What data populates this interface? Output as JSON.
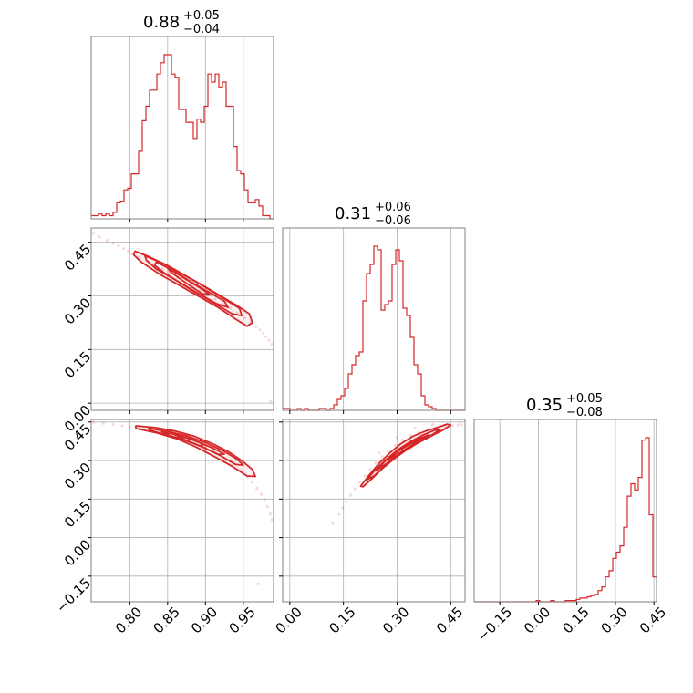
{
  "colors": {
    "series": "#d62728",
    "grid": "#b0b0b0",
    "frame": "#808080"
  },
  "chart_data": {
    "type": "corner",
    "parameters": 3,
    "grid": true,
    "titles": [
      {
        "value": "0.88",
        "plus": "+0.05",
        "minus": "−0.04"
      },
      {
        "value": "0.31",
        "plus": "+0.06",
        "minus": "−0.06"
      },
      {
        "value": "0.35",
        "plus": "+0.05",
        "minus": "−0.08"
      }
    ],
    "ranges": [
      [
        0.749,
        0.99
      ],
      [
        -0.02,
        0.49
      ],
      [
        -0.25,
        0.46
      ]
    ],
    "ticks": [
      {
        "values": [
          0.8,
          0.85,
          0.9,
          0.95
        ],
        "labels": [
          "0.80",
          "0.85",
          "0.90",
          "0.95"
        ]
      },
      {
        "values": [
          0.0,
          0.15,
          0.3,
          0.45
        ],
        "labels": [
          "0.00",
          "0.15",
          "0.30",
          "0.45"
        ]
      },
      {
        "values": [
          -0.15,
          0.0,
          0.15,
          0.3,
          0.45
        ],
        "labels": [
          "−0.15",
          "0.00",
          "0.15",
          "0.30",
          "0.45"
        ]
      }
    ],
    "histograms": [
      {
        "param": 0,
        "bin_start": 0.749,
        "bin_width": 0.00482,
        "counts": [
          2,
          2,
          3,
          2,
          3,
          2,
          4,
          10,
          11,
          18,
          19,
          28,
          28,
          42,
          61,
          70,
          80,
          80,
          90,
          97,
          102,
          102,
          90,
          88,
          68,
          68,
          60,
          60,
          50,
          62,
          60,
          70,
          90,
          85,
          90,
          82,
          85,
          70,
          70,
          45,
          30,
          28,
          18,
          10,
          10,
          12,
          8,
          2,
          2,
          0
        ]
      },
      {
        "param": 1,
        "bin_start": -0.02,
        "bin_width": 0.0102,
        "counts": [
          1,
          1,
          0,
          0,
          1,
          0,
          1,
          0,
          0,
          0,
          1,
          1,
          0,
          1,
          3,
          6,
          8,
          12,
          20,
          25,
          30,
          32,
          60,
          75,
          80,
          90,
          88,
          55,
          58,
          60,
          80,
          88,
          82,
          56,
          52,
          40,
          25,
          20,
          8,
          3,
          2,
          1,
          0,
          0,
          0,
          0,
          0,
          0,
          0,
          0
        ]
      },
      {
        "param": 2,
        "bin_start": -0.25,
        "bin_width": 0.0142,
        "counts": [
          0,
          0,
          0,
          0,
          0,
          0,
          0,
          0,
          0,
          0,
          0,
          0,
          0,
          0,
          0,
          0,
          0,
          1,
          0,
          0,
          0,
          1,
          0,
          0,
          0,
          1,
          1,
          1,
          2,
          3,
          3,
          4,
          5,
          6,
          9,
          12,
          20,
          25,
          35,
          40,
          45,
          60,
          85,
          95,
          90,
          100,
          130,
          132,
          70,
          20
        ]
      }
    ],
    "pairs": [
      {
        "x_param": 0,
        "y_param": 1,
        "samples": [
          [
            0.752,
            0.475
          ],
          [
            0.76,
            0.465
          ],
          [
            0.77,
            0.455
          ],
          [
            0.778,
            0.448
          ],
          [
            0.785,
            0.44
          ],
          [
            0.792,
            0.432
          ],
          [
            0.798,
            0.425
          ],
          [
            0.803,
            0.418
          ],
          [
            0.812,
            0.408
          ],
          [
            0.822,
            0.398
          ],
          [
            0.832,
            0.388
          ],
          [
            0.843,
            0.375
          ],
          [
            0.852,
            0.366
          ],
          [
            0.863,
            0.352
          ],
          [
            0.873,
            0.34
          ],
          [
            0.883,
            0.328
          ],
          [
            0.893,
            0.316
          ],
          [
            0.903,
            0.303
          ],
          [
            0.913,
            0.291
          ],
          [
            0.923,
            0.278
          ],
          [
            0.933,
            0.265
          ],
          [
            0.942,
            0.252
          ],
          [
            0.952,
            0.238
          ],
          [
            0.96,
            0.226
          ],
          [
            0.967,
            0.214
          ],
          [
            0.972,
            0.205
          ],
          [
            0.976,
            0.196
          ],
          [
            0.98,
            0.186
          ],
          [
            0.984,
            0.176
          ],
          [
            0.988,
            0.165
          ],
          [
            0.986,
            0.005
          ]
        ],
        "contours": [
          [
            [
              0.807,
              0.425
            ],
            [
              0.825,
              0.41
            ],
            [
              0.85,
              0.385
            ],
            [
              0.875,
              0.355
            ],
            [
              0.9,
              0.325
            ],
            [
              0.92,
              0.3
            ],
            [
              0.94,
              0.275
            ],
            [
              0.958,
              0.25
            ],
            [
              0.962,
              0.225
            ],
            [
              0.955,
              0.215
            ],
            [
              0.94,
              0.235
            ],
            [
              0.915,
              0.27
            ],
            [
              0.89,
              0.3
            ],
            [
              0.865,
              0.33
            ],
            [
              0.84,
              0.36
            ],
            [
              0.815,
              0.395
            ],
            [
              0.805,
              0.415
            ]
          ],
          [
            [
              0.82,
              0.412
            ],
            [
              0.845,
              0.39
            ],
            [
              0.87,
              0.36
            ],
            [
              0.895,
              0.33
            ],
            [
              0.92,
              0.298
            ],
            [
              0.945,
              0.265
            ],
            [
              0.948,
              0.245
            ],
            [
              0.935,
              0.25
            ],
            [
              0.91,
              0.282
            ],
            [
              0.885,
              0.312
            ],
            [
              0.86,
              0.345
            ],
            [
              0.835,
              0.375
            ],
            [
              0.822,
              0.4
            ]
          ],
          [
            [
              0.835,
              0.395
            ],
            [
              0.858,
              0.37
            ],
            [
              0.88,
              0.34
            ],
            [
              0.905,
              0.31
            ],
            [
              0.925,
              0.285
            ],
            [
              0.93,
              0.268
            ],
            [
              0.915,
              0.278
            ],
            [
              0.892,
              0.305
            ],
            [
              0.868,
              0.335
            ],
            [
              0.845,
              0.365
            ],
            [
              0.833,
              0.385
            ]
          ],
          [
            [
              0.85,
              0.378
            ],
            [
              0.87,
              0.352
            ],
            [
              0.893,
              0.322
            ],
            [
              0.905,
              0.305
            ],
            [
              0.896,
              0.306
            ],
            [
              0.875,
              0.335
            ],
            [
              0.855,
              0.365
            ]
          ]
        ]
      },
      {
        "x_param": 0,
        "y_param": 2,
        "samples": [
          [
            0.752,
            0.45
          ],
          [
            0.765,
            0.445
          ],
          [
            0.778,
            0.44
          ],
          [
            0.79,
            0.436
          ],
          [
            0.8,
            0.432
          ],
          [
            0.812,
            0.428
          ],
          [
            0.825,
            0.424
          ],
          [
            0.838,
            0.418
          ],
          [
            0.85,
            0.41
          ],
          [
            0.862,
            0.4
          ],
          [
            0.875,
            0.388
          ],
          [
            0.888,
            0.372
          ],
          [
            0.9,
            0.355
          ],
          [
            0.912,
            0.335
          ],
          [
            0.924,
            0.312
          ],
          [
            0.936,
            0.288
          ],
          [
            0.946,
            0.262
          ],
          [
            0.956,
            0.236
          ],
          [
            0.962,
            0.215
          ],
          [
            0.968,
            0.192
          ],
          [
            0.974,
            0.168
          ],
          [
            0.978,
            0.148
          ],
          [
            0.982,
            0.12
          ],
          [
            0.986,
            0.092
          ],
          [
            0.988,
            0.07
          ],
          [
            0.97,
            -0.18
          ]
        ],
        "contours": [
          [
            [
              0.808,
              0.435
            ],
            [
              0.835,
              0.428
            ],
            [
              0.86,
              0.415
            ],
            [
              0.885,
              0.395
            ],
            [
              0.91,
              0.365
            ],
            [
              0.93,
              0.335
            ],
            [
              0.948,
              0.3
            ],
            [
              0.962,
              0.265
            ],
            [
              0.966,
              0.238
            ],
            [
              0.955,
              0.24
            ],
            [
              0.935,
              0.278
            ],
            [
              0.912,
              0.315
            ],
            [
              0.888,
              0.352
            ],
            [
              0.862,
              0.385
            ],
            [
              0.835,
              0.408
            ],
            [
              0.808,
              0.425
            ]
          ],
          [
            [
              0.825,
              0.425
            ],
            [
              0.85,
              0.414
            ],
            [
              0.875,
              0.396
            ],
            [
              0.9,
              0.37
            ],
            [
              0.922,
              0.34
            ],
            [
              0.942,
              0.305
            ],
            [
              0.95,
              0.282
            ],
            [
              0.94,
              0.285
            ],
            [
              0.918,
              0.322
            ],
            [
              0.895,
              0.355
            ],
            [
              0.87,
              0.382
            ],
            [
              0.842,
              0.405
            ],
            [
              0.826,
              0.418
            ]
          ],
          [
            [
              0.842,
              0.412
            ],
            [
              0.865,
              0.398
            ],
            [
              0.888,
              0.375
            ],
            [
              0.91,
              0.348
            ],
            [
              0.925,
              0.325
            ],
            [
              0.917,
              0.324
            ],
            [
              0.898,
              0.35
            ],
            [
              0.875,
              0.378
            ],
            [
              0.852,
              0.398
            ]
          ],
          [
            [
              0.86,
              0.4
            ],
            [
              0.88,
              0.385
            ],
            [
              0.898,
              0.362
            ],
            [
              0.892,
              0.358
            ],
            [
              0.875,
              0.378
            ]
          ]
        ]
      },
      {
        "x_param": 1,
        "y_param": 2,
        "samples": [
          [
            0.12,
            0.055
          ],
          [
            0.138,
            0.09
          ],
          [
            0.148,
            0.115
          ],
          [
            0.158,
            0.14
          ],
          [
            0.17,
            0.165
          ],
          [
            0.182,
            0.19
          ],
          [
            0.195,
            0.215
          ],
          [
            0.21,
            0.24
          ],
          [
            0.225,
            0.265
          ],
          [
            0.24,
            0.29
          ],
          [
            0.258,
            0.315
          ],
          [
            0.275,
            0.338
          ],
          [
            0.295,
            0.36
          ],
          [
            0.315,
            0.38
          ],
          [
            0.338,
            0.398
          ],
          [
            0.36,
            0.41
          ],
          [
            0.385,
            0.42
          ],
          [
            0.41,
            0.428
          ],
          [
            0.435,
            0.432
          ],
          [
            0.455,
            0.435
          ],
          [
            0.47,
            0.438
          ],
          [
            0.48,
            0.44
          ],
          [
            0.3,
            0.39
          ],
          [
            0.35,
            0.425
          ],
          [
            0.4,
            0.44
          ],
          [
            0.25,
            0.33
          ]
        ],
        "contours": [
          [
            [
              0.198,
              0.2
            ],
            [
              0.22,
              0.24
            ],
            [
              0.25,
              0.29
            ],
            [
              0.28,
              0.33
            ],
            [
              0.31,
              0.365
            ],
            [
              0.345,
              0.395
            ],
            [
              0.38,
              0.415
            ],
            [
              0.415,
              0.43
            ],
            [
              0.44,
              0.442
            ],
            [
              0.45,
              0.438
            ],
            [
              0.43,
              0.42
            ],
            [
              0.395,
              0.395
            ],
            [
              0.36,
              0.37
            ],
            [
              0.325,
              0.34
            ],
            [
              0.29,
              0.305
            ],
            [
              0.26,
              0.27
            ],
            [
              0.23,
              0.23
            ],
            [
              0.205,
              0.198
            ]
          ],
          [
            [
              0.215,
              0.225
            ],
            [
              0.24,
              0.265
            ],
            [
              0.27,
              0.305
            ],
            [
              0.3,
              0.34
            ],
            [
              0.335,
              0.372
            ],
            [
              0.37,
              0.398
            ],
            [
              0.405,
              0.418
            ],
            [
              0.42,
              0.42
            ],
            [
              0.395,
              0.398
            ],
            [
              0.36,
              0.372
            ],
            [
              0.325,
              0.345
            ],
            [
              0.292,
              0.31
            ],
            [
              0.262,
              0.275
            ],
            [
              0.235,
              0.24
            ]
          ],
          [
            [
              0.24,
              0.26
            ],
            [
              0.265,
              0.295
            ],
            [
              0.295,
              0.33
            ],
            [
              0.33,
              0.362
            ],
            [
              0.365,
              0.388
            ],
            [
              0.39,
              0.4
            ],
            [
              0.375,
              0.388
            ],
            [
              0.34,
              0.36
            ],
            [
              0.305,
              0.328
            ],
            [
              0.272,
              0.29
            ]
          ],
          [
            [
              0.275,
              0.305
            ],
            [
              0.305,
              0.338
            ],
            [
              0.34,
              0.368
            ],
            [
              0.37,
              0.388
            ],
            [
              0.355,
              0.372
            ],
            [
              0.325,
              0.345
            ],
            [
              0.295,
              0.318
            ]
          ]
        ]
      }
    ]
  }
}
